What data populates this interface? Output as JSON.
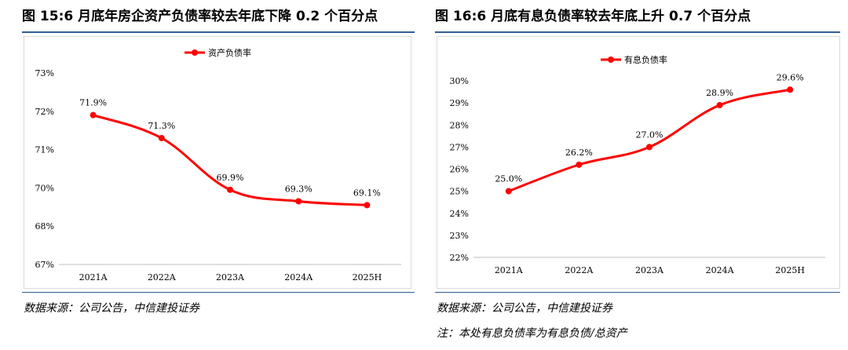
{
  "left": {
    "title": "图 15:6 月底年房企资产负债率较去年底下降 0.2 个百分点",
    "source": "数据来源：公司公告，中信建投证券"
  },
  "right": {
    "title": "图 16:6 月底有息负债率较去年底上升 0.7 个百分点",
    "source": "数据来源：公司公告，中信建投证券",
    "note": "注：本处有息负债率为有息负债/总资产"
  },
  "chart_data": [
    {
      "type": "line",
      "categories": [
        "2021A",
        "2022A",
        "2023A",
        "2024A",
        "2025H"
      ],
      "series": [
        {
          "name": "资产负债率",
          "values": [
            71.9,
            71.3,
            69.9,
            69.3,
            69.1
          ],
          "color": "#ff0000"
        }
      ],
      "data_labels": [
        "71.9%",
        "71.3%",
        "69.9%",
        "69.3%",
        "69.1%"
      ],
      "y_ticks": [
        67,
        68,
        70,
        71,
        72,
        73
      ],
      "y_tick_labels": [
        "67%",
        "68%",
        "70%",
        "71%",
        "72%",
        "73%"
      ],
      "y_tick_note": "axis tick labels printed as shown (non-linear: 67,68,70,71,72,73 at equal spacing)",
      "legend_position": "top-center",
      "grid": false
    },
    {
      "type": "line",
      "categories": [
        "2021A",
        "2022A",
        "2023A",
        "2024A",
        "2025H"
      ],
      "series": [
        {
          "name": "有息负债率",
          "values": [
            25.0,
            26.2,
            27.0,
            28.9,
            29.6
          ],
          "color": "#ff0000"
        }
      ],
      "data_labels": [
        "25.0%",
        "26.2%",
        "27.0%",
        "28.9%",
        "29.6%"
      ],
      "y_ticks": [
        22,
        23,
        24,
        25,
        26,
        27,
        28,
        29,
        30
      ],
      "y_tick_labels": [
        "22%",
        "23%",
        "24%",
        "25%",
        "26%",
        "27%",
        "28%",
        "29%",
        "30%"
      ],
      "ylim": [
        22,
        30
      ],
      "legend_position": "top-center",
      "grid": false
    }
  ]
}
